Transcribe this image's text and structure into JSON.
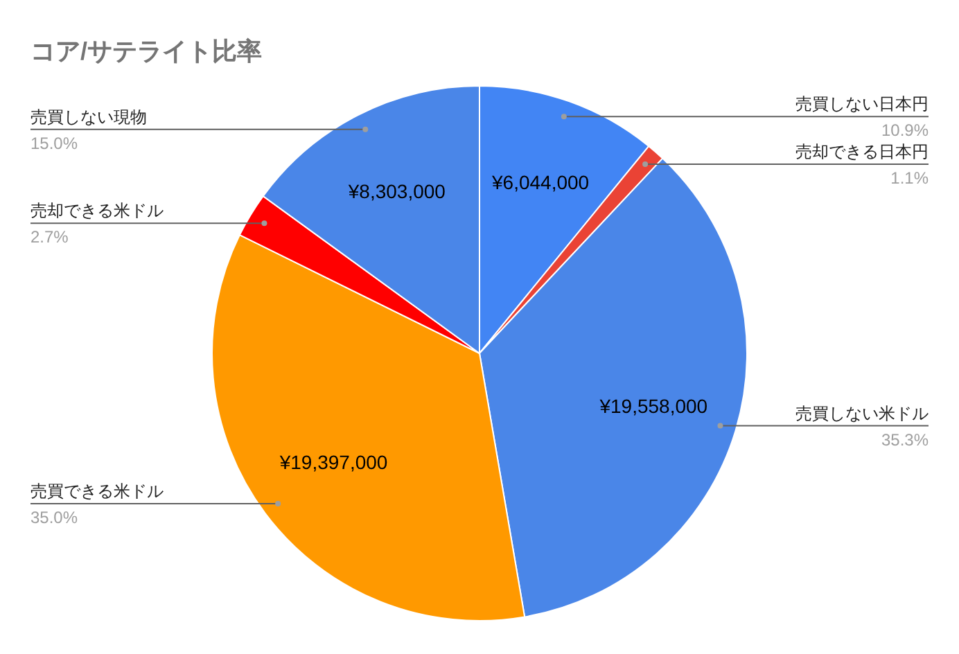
{
  "chart_data": {
    "type": "pie",
    "title": "コア/サテライト比率",
    "categories": [
      "売買しない日本円",
      "売却できる日本円",
      "売買しない米ドル",
      "売買できる米ドル",
      "売却できる米ドル",
      "売買しない現物"
    ],
    "values": [
      10.9,
      1.1,
      35.3,
      35.0,
      2.7,
      15.0
    ],
    "value_labels": [
      "10.9%",
      "1.1%",
      "35.3%",
      "35.0%",
      "2.7%",
      "15.0%"
    ],
    "colors": [
      "#4285f4",
      "#ea4335",
      "#4a86e8",
      "#ff9900",
      "#ff0000",
      "#4a86e8"
    ],
    "annotations": [
      {
        "text": "¥6,044,000",
        "x": "売買しない日本円"
      },
      {
        "text": "¥19,558,000",
        "x": "売買しない米ドル"
      },
      {
        "text": "¥19,397,000",
        "x": "売買できる米ドル"
      },
      {
        "text": "¥8,303,000",
        "x": "売買しない現物"
      }
    ]
  }
}
